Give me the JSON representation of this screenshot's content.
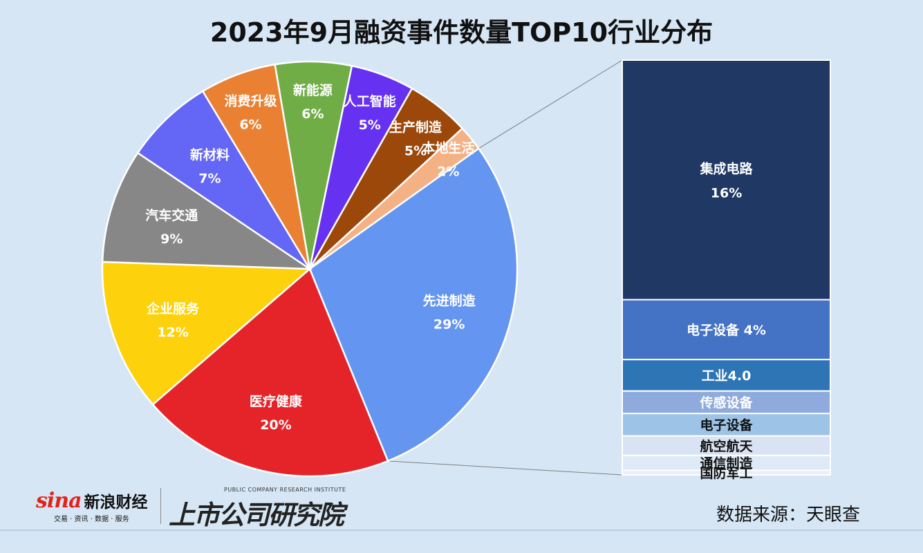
{
  "chart_data": {
    "type": "pie",
    "title": "2023年9月融资事件数量TOP10行业分布",
    "slices": [
      {
        "name": "先进制造",
        "value": 29,
        "label": "29%",
        "color": "#6495f0"
      },
      {
        "name": "医疗健康",
        "value": 20,
        "label": "20%",
        "color": "#e5242a"
      },
      {
        "name": "企业服务",
        "value": 12,
        "label": "12%",
        "color": "#fdd10c"
      },
      {
        "name": "汽车交通",
        "value": 9,
        "label": "9%",
        "color": "#878787"
      },
      {
        "name": "新材料",
        "value": 7,
        "label": "7%",
        "color": "#6466f5"
      },
      {
        "name": "消费升级",
        "value": 6,
        "label": "6%",
        "color": "#ea8132"
      },
      {
        "name": "新能源",
        "value": 6,
        "label": "6%",
        "color": "#70ad47"
      },
      {
        "name": "人工智能",
        "value": 5,
        "label": "5%",
        "color": "#6631f0"
      },
      {
        "name": "生产制造",
        "value": 5,
        "label": "5%",
        "color": "#9c480b"
      },
      {
        "name": "本地生活",
        "value": 2,
        "label": "2%",
        "color": "#f4b183"
      }
    ],
    "breakdown": {
      "parent": "先进制造",
      "segments": [
        {
          "name": "集成电路",
          "value": 16,
          "text": "集成电路",
          "pct": "16%",
          "color": "#203864",
          "text_color": "#ffffff"
        },
        {
          "name": "电子设备",
          "value": 4,
          "text": "电子设备 4%",
          "color": "#4472c4",
          "text_color": "#ffffff"
        },
        {
          "name": "工业4.0",
          "value": 2.1,
          "text": "工业4.0",
          "color": "#2e75b6",
          "text_color": "#ffffff"
        },
        {
          "name": "传感设备",
          "value": 1.5,
          "text": "传感设备",
          "color": "#8faadc",
          "text_color": "#ffffff"
        },
        {
          "name": "电子设备",
          "value": 1.5,
          "text": "电子设备",
          "color": "#9dc3e6",
          "text_color": "#111111"
        },
        {
          "name": "航空航天",
          "value": 1.3,
          "text": "航空航天",
          "color": "#dae3f3",
          "text_color": "#111111"
        },
        {
          "name": "通信制造",
          "value": 1.0,
          "text": "通信制造",
          "color": "#deebf7",
          "text_color": "#111111"
        },
        {
          "name": "国防军工",
          "value": 0.3,
          "text": "国防军工",
          "color": "#e8eff8",
          "text_color": "#111111"
        }
      ]
    }
  },
  "footer": {
    "source": "数据来源：天眼查",
    "sina_word": "sina",
    "sina_name": "新浪财经",
    "sina_tagline": "交易 · 资讯 · 数据 · 服务",
    "institute_en": "PUBLIC COMPANY RESEARCH INSTITUTE",
    "institute_cn": "上市公司研究院"
  }
}
